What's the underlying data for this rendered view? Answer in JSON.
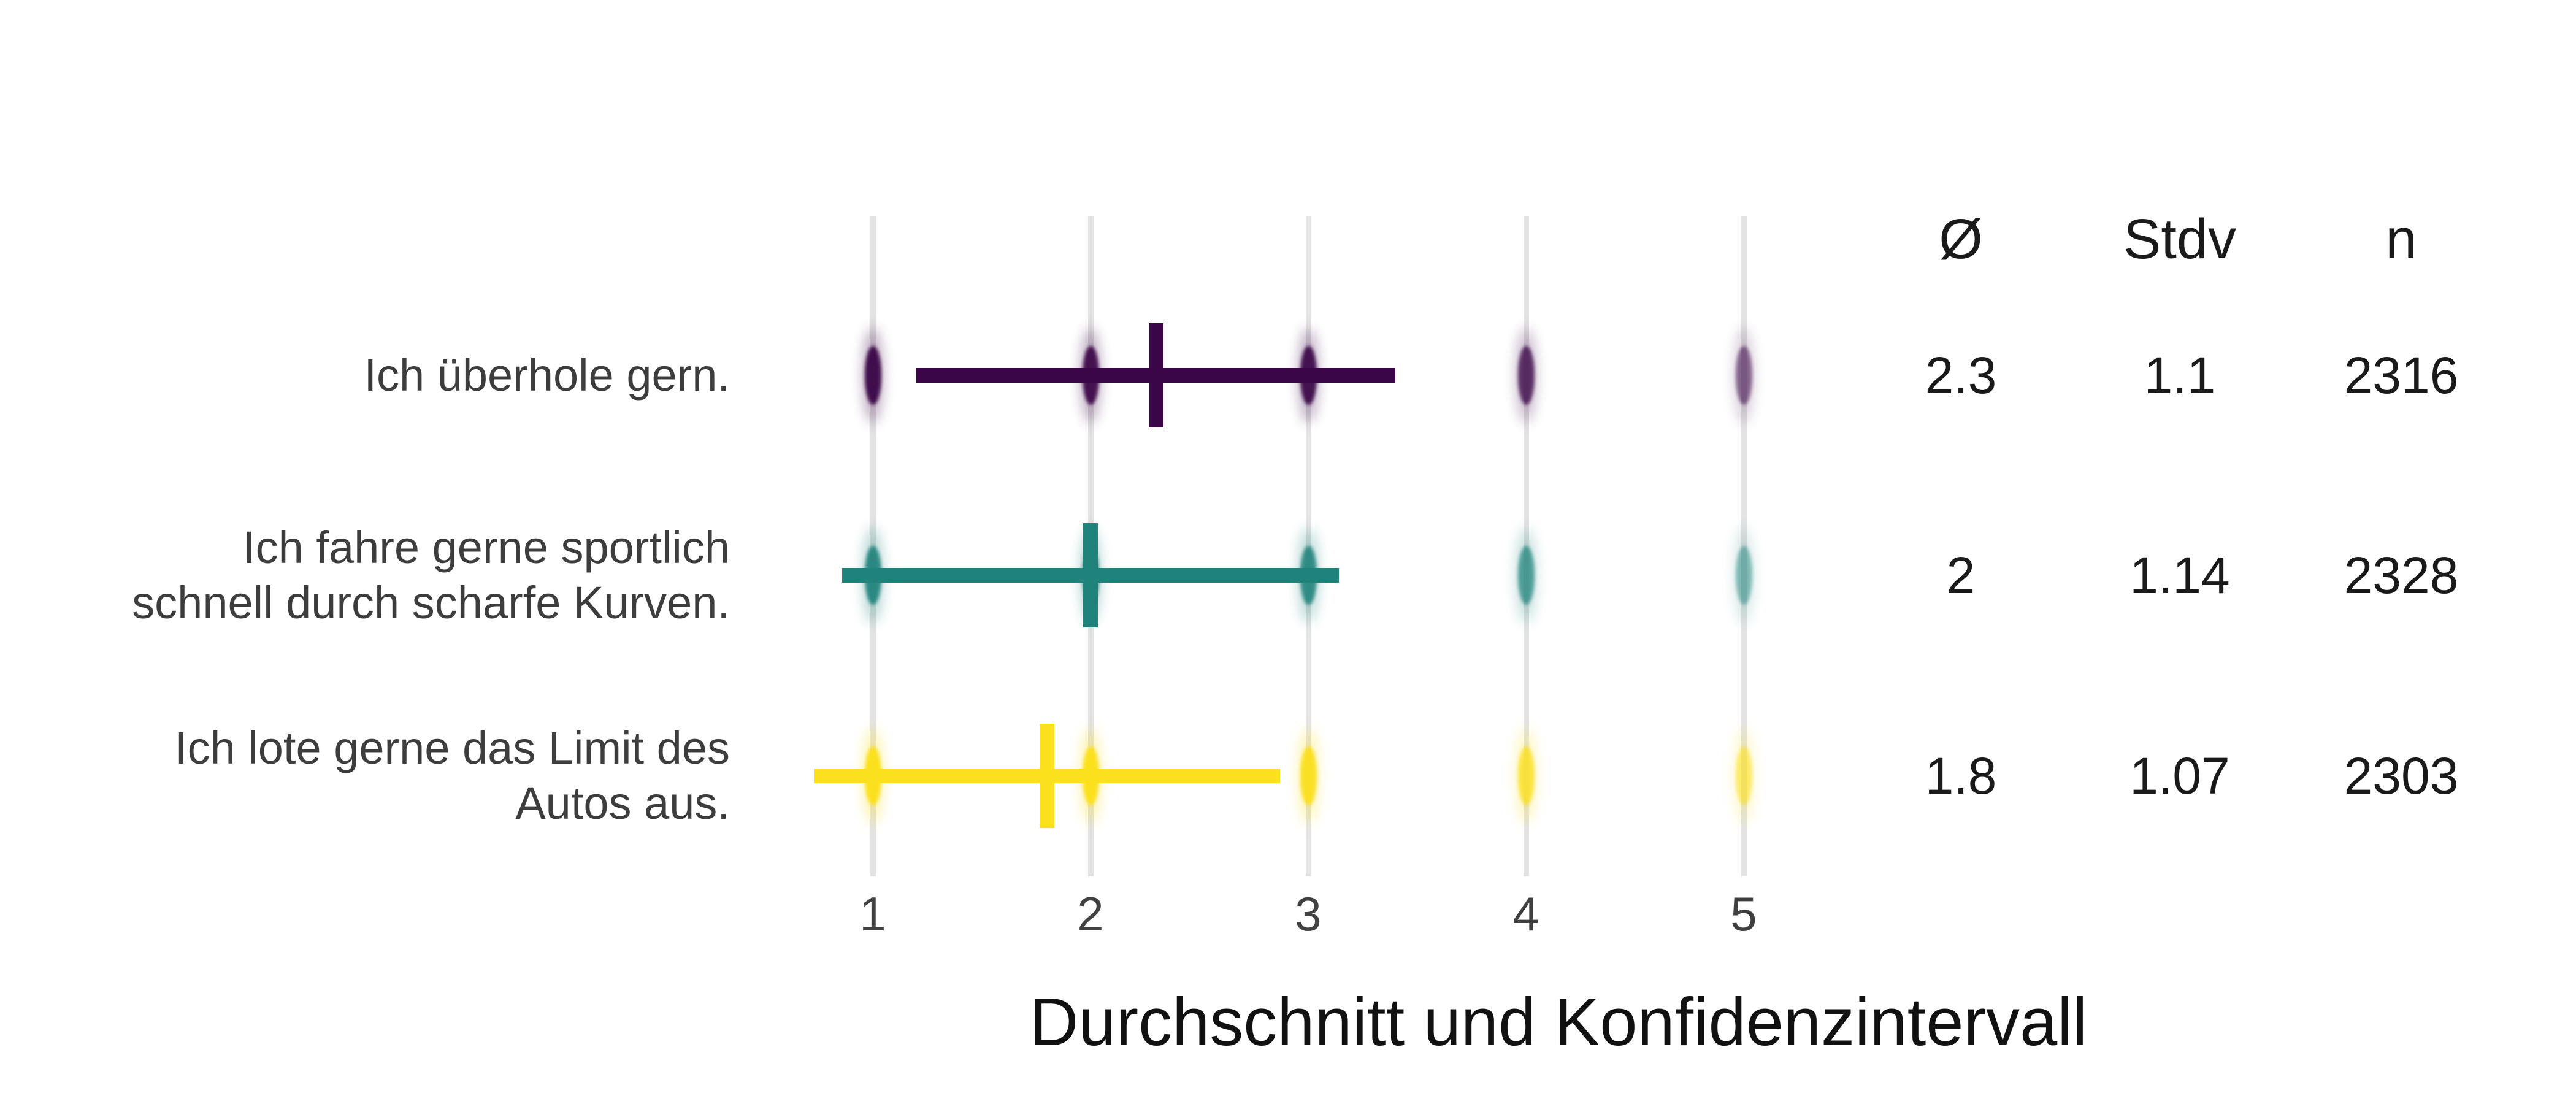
{
  "chart_data": {
    "type": "scatter",
    "variant": "likert-means-with-confidence-and-jittered-responses",
    "title": "",
    "xlabel": "Durchschnitt und Konfidenzintervall",
    "x_axis": {
      "ticks": [
        "1",
        "2",
        "3",
        "4",
        "5"
      ],
      "tick_values": [
        1,
        2,
        3,
        4,
        5
      ],
      "xlim": [
        1,
        5
      ]
    },
    "grid": "vertical-gridlines-only",
    "legend_position": "none",
    "marker_note": "per row: jittered response dots at each scale value 1-5, horizontal bar = mean ± stdv, vertical tick = mean",
    "stats_columns": [
      {
        "key": "mean",
        "label": "Ø"
      },
      {
        "key": "stdv",
        "label": "Stdv"
      },
      {
        "key": "n",
        "label": "n"
      }
    ],
    "series": [
      {
        "label_lines": [
          "Ich überhole gern."
        ],
        "mean": 2.3,
        "stdv": 1.1,
        "n": 2316,
        "mean_text": "2.3",
        "stdv_text": "1.1",
        "n_text": "2316",
        "color": "#3a0647",
        "dot_opacity": [
          0.95,
          0.92,
          0.92,
          0.78,
          0.55
        ]
      },
      {
        "label_lines": [
          "Ich fahre gerne sportlich",
          "schnell durch scharfe Kurven."
        ],
        "mean": 2.0,
        "stdv": 1.14,
        "n": 2328,
        "mean_text": "2",
        "stdv_text": "1.14",
        "n_text": "2328",
        "color": "#1f837c",
        "dot_opacity": [
          0.92,
          0.92,
          0.88,
          0.72,
          0.5
        ]
      },
      {
        "label_lines": [
          "Ich lote gerne das Limit des",
          "Autos aus."
        ],
        "mean": 1.8,
        "stdv": 1.07,
        "n": 2303,
        "mean_text": "1.8",
        "stdv_text": "1.07",
        "n_text": "2303",
        "color": "#fbe01e",
        "dot_opacity": [
          1,
          1,
          0.95,
          0.8,
          0.6
        ]
      }
    ],
    "colors": {
      "gridline": "#e3e3e3",
      "row_label_text": "#3d3d3d",
      "tick_text": "#404040",
      "stats_text": "#1a1a1a",
      "title_text": "#111111",
      "background": "#ffffff"
    }
  }
}
